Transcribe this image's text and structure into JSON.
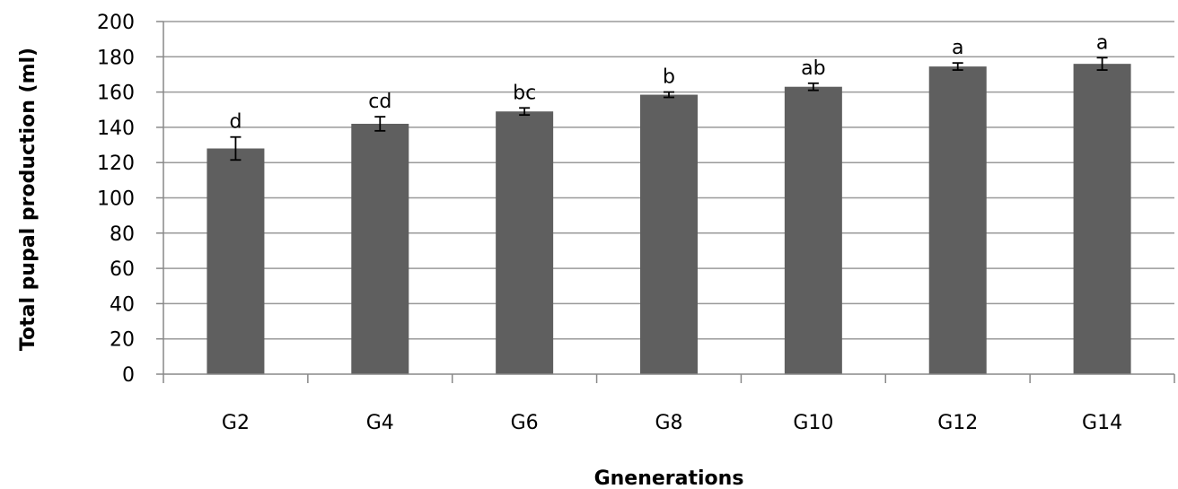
{
  "chart_data": {
    "type": "bar",
    "title": "",
    "xlabel": "Gnenerations",
    "ylabel": "Total pupal production (ml)",
    "categories": [
      "G2",
      "G4",
      "G6",
      "G8",
      "G10",
      "G12",
      "G14"
    ],
    "values": [
      128,
      142,
      149,
      158.5,
      163,
      174.5,
      176
    ],
    "errors": [
      6.5,
      4,
      2,
      1.5,
      2,
      2,
      3.5
    ],
    "significance": [
      "d",
      "cd",
      "bc",
      "b",
      "ab",
      "a",
      "a"
    ],
    "ylim": [
      0,
      200
    ],
    "yticks": [
      0,
      20,
      40,
      60,
      80,
      100,
      120,
      140,
      160,
      180,
      200
    ],
    "grid": true,
    "bar_color": "#5f5f5f",
    "grid_color": "#9a9a9a"
  }
}
